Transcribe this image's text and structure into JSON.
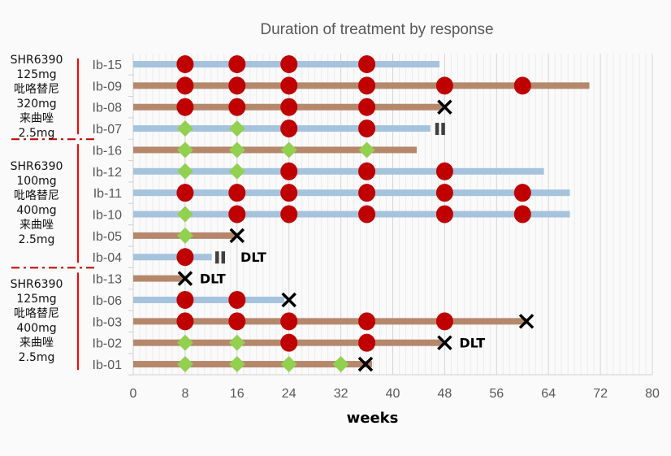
{
  "chart_data": {
    "type": "swimmer",
    "title": "Duration of treatment by response",
    "xlabel": "weeks",
    "xlim": [
      0,
      80
    ],
    "xticks": [
      0,
      8,
      16,
      24,
      32,
      40,
      48,
      56,
      64,
      72,
      80
    ],
    "grid": true,
    "colors": {
      "bar_blue": "#a6c3de",
      "bar_brown": "#b5886c",
      "circle": "#c00000",
      "diamond": "#92d050",
      "cross": "#000000",
      "pause": "#404040"
    },
    "marker_types": {
      "circle": "red-circle",
      "diamond": "green-diamond",
      "cross": "x-mark",
      "pause": "pause-bars"
    },
    "groups": [
      {
        "lines": [
          "SHR6390",
          "125mg",
          "吡咯替尼",
          "320mg",
          "来曲唑",
          "2.5mg"
        ],
        "patients": [
          "Ib-15",
          "Ib-09",
          "Ib-08",
          "Ib-07"
        ]
      },
      {
        "lines": [
          "SHR6390",
          "100mg",
          "吡咯替尼",
          "400mg",
          "来曲唑",
          "2.5mg"
        ],
        "patients": [
          "Ib-16",
          "Ib-12",
          "Ib-11",
          "Ib-10",
          "Ib-05",
          "Ib-04"
        ]
      },
      {
        "lines": [
          "SHR6390",
          "125mg",
          "吡咯替尼",
          "400mg",
          "来曲唑",
          "2.5mg"
        ],
        "patients": [
          "Ib-13",
          "Ib-06",
          "Ib-03",
          "Ib-02",
          "Ib-01"
        ]
      }
    ],
    "patients": [
      {
        "id": "Ib-15",
        "duration": 47.2,
        "color": "blue",
        "circles": [
          8,
          16,
          24,
          36
        ],
        "diamonds": [],
        "cross": null,
        "pause": null,
        "label": ""
      },
      {
        "id": "Ib-09",
        "duration": 70.3,
        "color": "brown",
        "circles": [
          8,
          16,
          24,
          36,
          48,
          60
        ],
        "diamonds": [],
        "cross": null,
        "pause": null,
        "label": ""
      },
      {
        "id": "Ib-08",
        "duration": 47.8,
        "color": "brown",
        "circles": [
          8,
          16,
          24,
          36
        ],
        "diamonds": [],
        "cross": 48,
        "pause": null,
        "label": ""
      },
      {
        "id": "Ib-07",
        "duration": 45.8,
        "color": "blue",
        "circles": [
          24,
          36
        ],
        "diamonds": [
          8,
          16
        ],
        "cross": null,
        "pause": 47.3,
        "label": ""
      },
      {
        "id": "Ib-16",
        "duration": 43.7,
        "color": "brown",
        "circles": [],
        "diamonds": [
          8,
          16,
          24,
          36
        ],
        "cross": null,
        "pause": null,
        "label": ""
      },
      {
        "id": "Ib-12",
        "duration": 63.3,
        "color": "blue",
        "circles": [
          24,
          36,
          48
        ],
        "diamonds": [
          8,
          16
        ],
        "cross": null,
        "pause": null,
        "label": ""
      },
      {
        "id": "Ib-11",
        "duration": 67.3,
        "color": "blue",
        "circles": [
          8,
          16,
          24,
          36,
          48,
          60
        ],
        "diamonds": [],
        "cross": null,
        "pause": null,
        "label": ""
      },
      {
        "id": "Ib-10",
        "duration": 67.3,
        "color": "blue",
        "circles": [
          16,
          24,
          36,
          48,
          60
        ],
        "diamonds": [
          8
        ],
        "cross": null,
        "pause": null,
        "label": ""
      },
      {
        "id": "Ib-05",
        "duration": 15.8,
        "color": "brown",
        "circles": [],
        "diamonds": [
          8
        ],
        "cross": 16,
        "pause": null,
        "label": ""
      },
      {
        "id": "Ib-04",
        "duration": 12.1,
        "color": "blue",
        "circles": [
          8
        ],
        "diamonds": [],
        "cross": null,
        "pause": 13.4,
        "label": "DLT"
      },
      {
        "id": "Ib-13",
        "duration": 7.8,
        "color": "brown",
        "circles": [],
        "diamonds": [],
        "cross": 8,
        "pause": null,
        "label": "DLT"
      },
      {
        "id": "Ib-06",
        "duration": 23.3,
        "color": "blue",
        "circles": [
          8,
          16
        ],
        "diamonds": [],
        "cross": 24,
        "pause": null,
        "label": ""
      },
      {
        "id": "Ib-03",
        "duration": 60.6,
        "color": "brown",
        "circles": [
          8,
          16,
          24,
          36,
          48
        ],
        "diamonds": [],
        "cross": 60.6,
        "pause": null,
        "label": ""
      },
      {
        "id": "Ib-02",
        "duration": 47.7,
        "color": "brown",
        "circles": [
          24,
          36
        ],
        "diamonds": [
          8,
          16
        ],
        "cross": 48,
        "pause": null,
        "label": "DLT"
      },
      {
        "id": "Ib-01",
        "duration": 36.8,
        "color": "brown",
        "circles": [],
        "diamonds": [
          8,
          16,
          24,
          32
        ],
        "cross": 35.8,
        "pause": null,
        "label": ""
      }
    ]
  }
}
